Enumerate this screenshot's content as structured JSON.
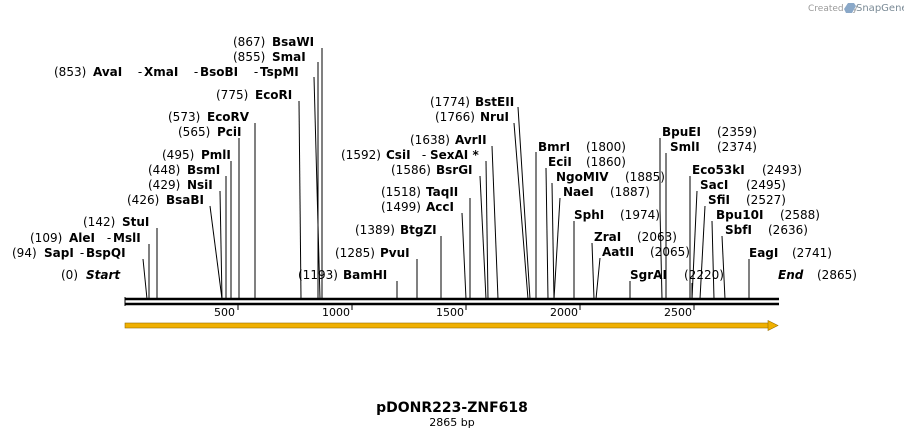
{
  "credit": {
    "prefix": "Created by",
    "brand": "SnapGene"
  },
  "map": {
    "name": "pDONR223-ZNF618",
    "length_label": "2865 bp",
    "length": 2865,
    "start_label": "Start",
    "end_label": "End",
    "start_pos": "(0)",
    "end_pos": "(2865)",
    "ruler_ticks": [
      "500",
      "1000",
      "1500",
      "2000",
      "2500"
    ],
    "feature_color": "#f0b000"
  },
  "sites": [
    {
      "pos": "(867)",
      "name": "BsaWI"
    },
    {
      "pos": "(855)",
      "name": "SmaI"
    },
    {
      "pos": "(853)",
      "names": [
        "AvaI",
        "XmaI",
        "BsoBI",
        "TspMI"
      ]
    },
    {
      "pos": "(775)",
      "name": "EcoRI"
    },
    {
      "pos": "(573)",
      "name": "EcoRV"
    },
    {
      "pos": "(565)",
      "name": "PciI"
    },
    {
      "pos": "(495)",
      "name": "PmlI"
    },
    {
      "pos": "(448)",
      "name": "BsmI"
    },
    {
      "pos": "(429)",
      "name": "NsiI"
    },
    {
      "pos": "(426)",
      "name": "BsaBI"
    },
    {
      "pos": "(142)",
      "name": "StuI"
    },
    {
      "pos": "(109)",
      "names": [
        "AleI",
        "MslI"
      ]
    },
    {
      "pos": "(94)",
      "names": [
        "SapI",
        "BspQI"
      ]
    },
    {
      "pos": "(1774)",
      "name": "BstEII"
    },
    {
      "pos": "(1766)",
      "name": "NruI"
    },
    {
      "pos": "(1638)",
      "name": "AvrII"
    },
    {
      "pos": "(1592)",
      "names": [
        "CsiI",
        "SexAI *"
      ]
    },
    {
      "pos": "(1586)",
      "name": "BsrGI"
    },
    {
      "pos": "(1518)",
      "name": "TaqII"
    },
    {
      "pos": "(1499)",
      "name": "AccI"
    },
    {
      "pos": "(1389)",
      "name": "BtgZI"
    },
    {
      "pos": "(1285)",
      "name": "PvuI"
    },
    {
      "pos": "(1193)",
      "name": "BamHI"
    },
    {
      "name": "BmrI",
      "pos": "(1800)"
    },
    {
      "name": "EciI",
      "pos": "(1860)"
    },
    {
      "name": "NgoMIV",
      "pos": "(1885)"
    },
    {
      "name": "NaeI",
      "pos": "(1887)"
    },
    {
      "name": "SphI",
      "pos": "(1974)"
    },
    {
      "name": "ZraI",
      "pos": "(2063)"
    },
    {
      "name": "AatII",
      "pos": "(2065)"
    },
    {
      "name": "SgrAI",
      "pos": "(2220)"
    },
    {
      "name": "BpuEI",
      "pos": "(2359)"
    },
    {
      "name": "SmlI",
      "pos": "(2374)"
    },
    {
      "name": "Eco53kI",
      "pos": "(2493)"
    },
    {
      "name": "SacI",
      "pos": "(2495)"
    },
    {
      "name": "SfiI",
      "pos": "(2527)"
    },
    {
      "name": "Bpu10I",
      "pos": "(2588)"
    },
    {
      "name": "SbfI",
      "pos": "(2636)"
    },
    {
      "name": "EagI",
      "pos": "(2741)"
    }
  ]
}
